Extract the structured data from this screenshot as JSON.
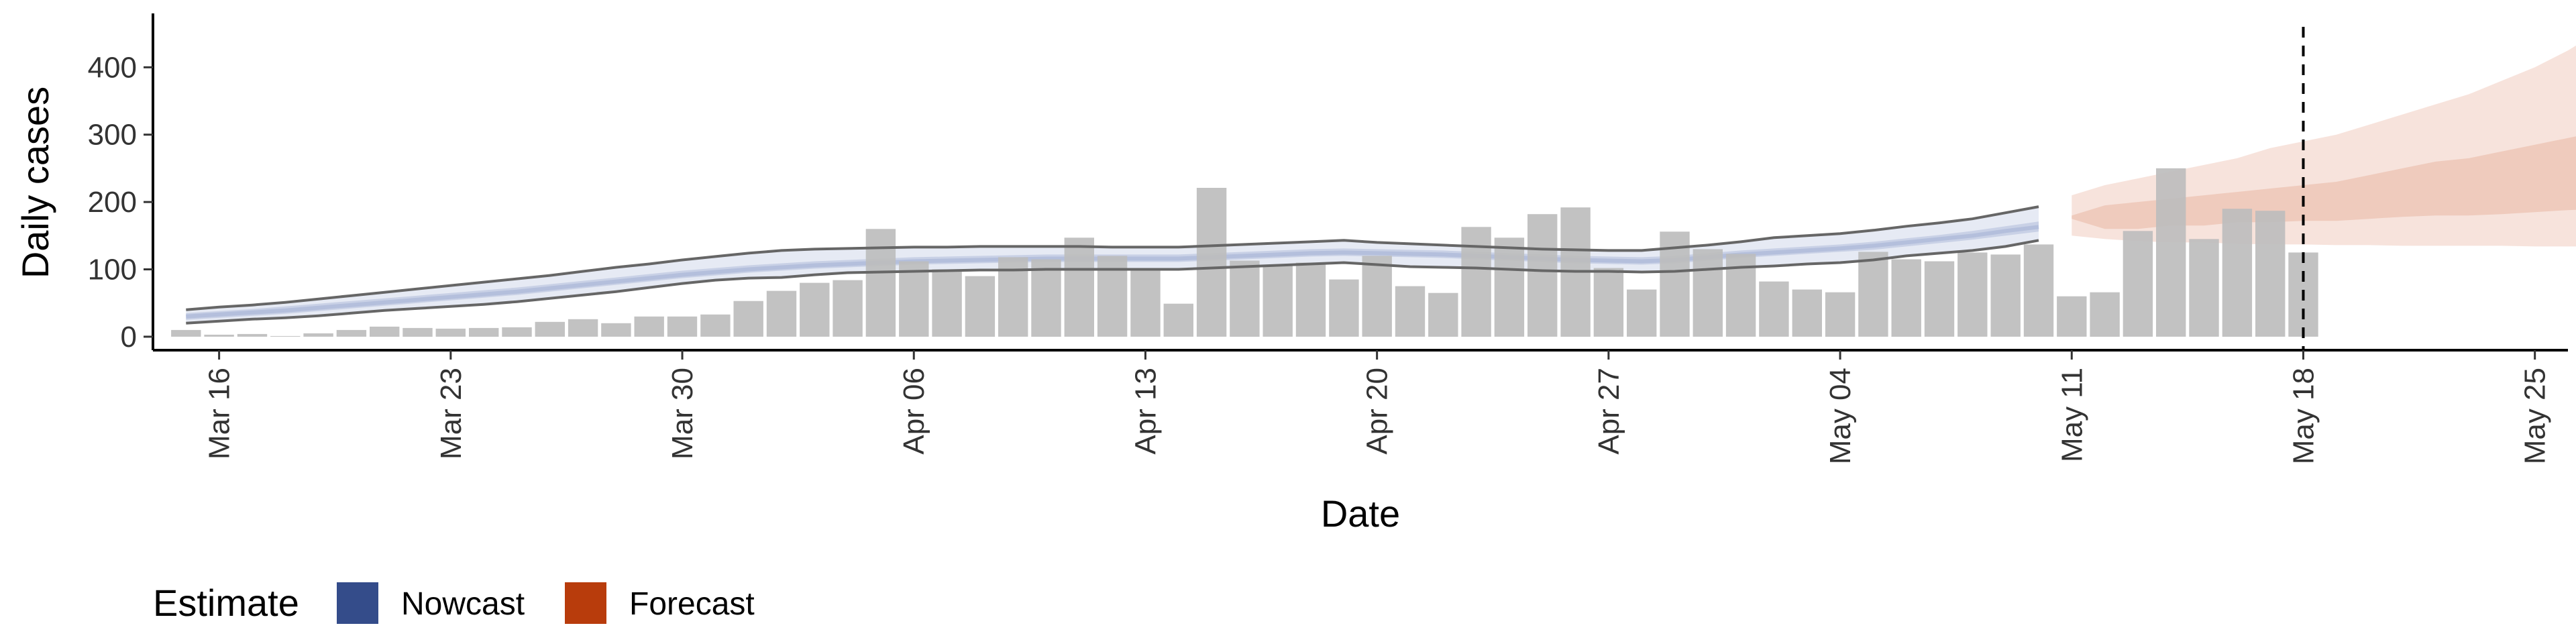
{
  "chart_data": {
    "type": "bar",
    "xlabel": "Date",
    "ylabel": "Daily cases",
    "x_start_date": "2020-03-15",
    "xlim": [
      "2020-03-14",
      "2020-05-26"
    ],
    "ylim": [
      -20,
      480
    ],
    "y_ticks": [
      0,
      100,
      200,
      300,
      400
    ],
    "x_ticks": [
      {
        "date": "2020-03-16",
        "label": "Mar 16"
      },
      {
        "date": "2020-03-23",
        "label": "Mar 23"
      },
      {
        "date": "2020-03-30",
        "label": "Mar 30"
      },
      {
        "date": "2020-04-06",
        "label": "Apr 06"
      },
      {
        "date": "2020-04-13",
        "label": "Apr 13"
      },
      {
        "date": "2020-04-20",
        "label": "Apr 20"
      },
      {
        "date": "2020-04-27",
        "label": "Apr 27"
      },
      {
        "date": "2020-05-04",
        "label": "May 04"
      },
      {
        "date": "2020-05-11",
        "label": "May 11"
      },
      {
        "date": "2020-05-18",
        "label": "May 18"
      },
      {
        "date": "2020-05-25",
        "label": "May 25"
      }
    ],
    "reported_cases": [
      10,
      3,
      4,
      1,
      5,
      10,
      15,
      13,
      12,
      13,
      14,
      22,
      26,
      20,
      30,
      30,
      33,
      53,
      68,
      80,
      84,
      160,
      112,
      100,
      90,
      118,
      115,
      147,
      120,
      100,
      49,
      221,
      113,
      107,
      110,
      85,
      120,
      75,
      65,
      163,
      147,
      182,
      192,
      102,
      70,
      156,
      130,
      123,
      82,
      70,
      66,
      126,
      115,
      112,
      125,
      122,
      137,
      60,
      66,
      157,
      250,
      145,
      190,
      187,
      125
    ],
    "vertical_line_date": "2020-05-18",
    "nowcast": {
      "start_date": "2020-03-15",
      "median": [
        30,
        33,
        36,
        39,
        43,
        47,
        51,
        55,
        59,
        63,
        67,
        72,
        77,
        82,
        87,
        92,
        96,
        100,
        103,
        106,
        108,
        110,
        112,
        113,
        114,
        115,
        116,
        116,
        116,
        116,
        116,
        118,
        120,
        122,
        124,
        125,
        124,
        123,
        122,
        120,
        118,
        116,
        114,
        113,
        112,
        114,
        118,
        122,
        125,
        128,
        131,
        135,
        140,
        145,
        150,
        157,
        163
      ],
      "lower_50": [
        25,
        28,
        31,
        34,
        38,
        42,
        46,
        50,
        54,
        58,
        62,
        67,
        72,
        77,
        82,
        87,
        91,
        95,
        98,
        101,
        103,
        105,
        107,
        108,
        109,
        110,
        111,
        111,
        111,
        111,
        111,
        113,
        115,
        117,
        119,
        120,
        119,
        118,
        117,
        115,
        113,
        111,
        109,
        108,
        107,
        109,
        113,
        117,
        120,
        123,
        126,
        129,
        134,
        139,
        144,
        150,
        156
      ],
      "upper_50": [
        35,
        38,
        41,
        45,
        49,
        53,
        57,
        61,
        65,
        69,
        73,
        78,
        83,
        88,
        93,
        98,
        102,
        106,
        109,
        112,
        114,
        116,
        118,
        119,
        120,
        121,
        122,
        122,
        122,
        122,
        122,
        124,
        126,
        128,
        130,
        131,
        130,
        129,
        128,
        126,
        124,
        122,
        120,
        119,
        118,
        120,
        124,
        128,
        131,
        134,
        137,
        141,
        146,
        151,
        157,
        164,
        171
      ],
      "lower_90": [
        20,
        23,
        26,
        28,
        31,
        35,
        39,
        42,
        45,
        48,
        52,
        57,
        62,
        67,
        73,
        79,
        84,
        87,
        88,
        92,
        95,
        96,
        97,
        98,
        99,
        99,
        100,
        100,
        100,
        100,
        100,
        102,
        104,
        106,
        108,
        110,
        107,
        104,
        103,
        102,
        100,
        98,
        97,
        97,
        96,
        97,
        100,
        103,
        105,
        108,
        110,
        114,
        120,
        124,
        128,
        134,
        143
      ],
      "upper_90": [
        40,
        44,
        47,
        51,
        56,
        61,
        66,
        71,
        76,
        81,
        86,
        91,
        97,
        103,
        108,
        114,
        119,
        124,
        128,
        130,
        131,
        132,
        133,
        133,
        134,
        134,
        134,
        134,
        133,
        133,
        133,
        135,
        137,
        139,
        141,
        143,
        140,
        138,
        136,
        134,
        132,
        130,
        129,
        128,
        128,
        132,
        136,
        141,
        147,
        150,
        153,
        158,
        164,
        169,
        175,
        184,
        193
      ]
    },
    "forecast": {
      "start_date": "2020-05-11",
      "lower_90": [
        150,
        145,
        142,
        140,
        140,
        138,
        137,
        137,
        136,
        136,
        135,
        135,
        135,
        135,
        134,
        134,
        134
      ],
      "lower_50": [
        175,
        160,
        160,
        165,
        165,
        170,
        170,
        172,
        172,
        175,
        178,
        180,
        180,
        182,
        185,
        188,
        190
      ],
      "upper_50": [
        180,
        195,
        200,
        205,
        210,
        215,
        220,
        225,
        230,
        240,
        250,
        260,
        265,
        275,
        285,
        295,
        305
      ],
      "upper_90": [
        210,
        225,
        235,
        245,
        255,
        265,
        280,
        290,
        300,
        315,
        330,
        345,
        360,
        380,
        400,
        425,
        455
      ]
    },
    "legend": {
      "title": "Estimate",
      "placement": "bottom-left",
      "items": [
        {
          "label": "Nowcast",
          "color": "#344c8a"
        },
        {
          "label": "Forecast",
          "color": "#b83c0c"
        }
      ]
    },
    "colors": {
      "bars": "#bdbdbd",
      "nowcast_90": "#e6eaf4",
      "nowcast_50": "#c9d1e6",
      "forecast_90": "#f7e3dc",
      "forecast_50": "#efcbbd",
      "outline": "#666666"
    }
  }
}
